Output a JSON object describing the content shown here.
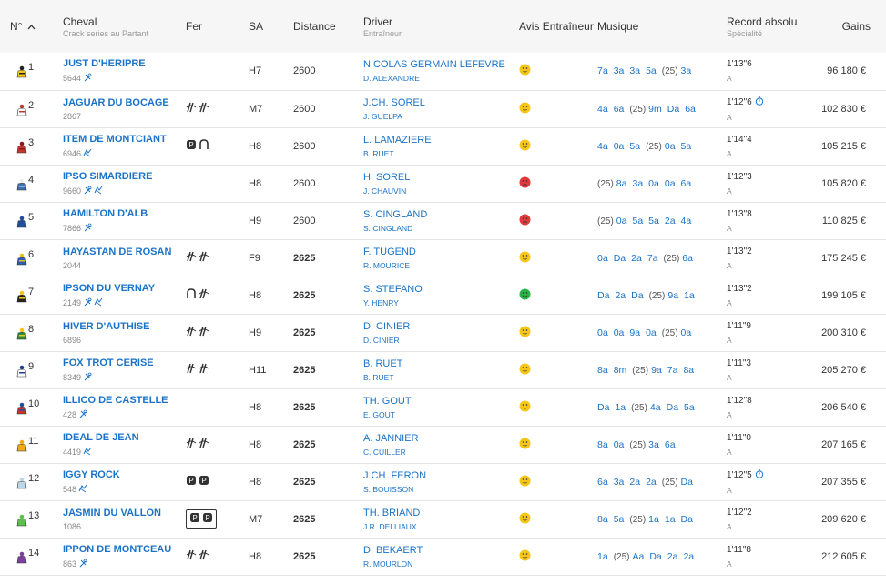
{
  "headers": {
    "num": "N°",
    "cheval": "Cheval",
    "cheval_sub": "Crack series au Partant",
    "fer": "Fer",
    "sa": "SA",
    "distance": "Distance",
    "driver": "Driver",
    "driver_sub": "Entraîneur",
    "avis": "Avis Entraîneur",
    "musique": "Musique",
    "record": "Record absolu",
    "record_sub": "Spécialité",
    "gains": "Gains"
  },
  "colors": {
    "link": "#1a73c8",
    "happy": "#f5c518",
    "sad": "#e0393e",
    "great": "#2bb34a"
  },
  "rows": [
    {
      "num": "1",
      "jersey": [
        "#f5c518",
        "#222"
      ],
      "name": "JUST D'HERIPRE",
      "gain": "5644",
      "gain_icons": [
        "horseshoe-icon"
      ],
      "fer": [],
      "sa": "H7",
      "distance": "2600",
      "bold": false,
      "driver": "NICOLAS GERMAIN LEFEVRE",
      "trainer": "D. ALEXANDRE",
      "avis": "neutral",
      "musique": [
        "7a",
        "3a",
        "3a",
        "5a",
        "(25)",
        "3a"
      ],
      "record": "1'13\"6",
      "record_icon": false,
      "spec": "A",
      "gains": "96 180 €"
    },
    {
      "num": "2",
      "jersey": [
        "#ffffff",
        "#c0392b"
      ],
      "name": "JAGUAR DU BOCAGE",
      "gain": "2867",
      "gain_icons": [],
      "fer": [
        "barefoot",
        "barefoot"
      ],
      "sa": "M7",
      "distance": "2600",
      "bold": false,
      "driver": "J.CH. SOREL",
      "trainer": "J. GUELPA",
      "avis": "neutral",
      "musique": [
        "4a",
        "6a",
        "(25)",
        "9m",
        "Da",
        "6a"
      ],
      "record": "1'12\"6",
      "record_icon": true,
      "spec": "A",
      "gains": "102 830 €"
    },
    {
      "num": "3",
      "jersey": [
        "#c0392b",
        "#8b1a1a"
      ],
      "name": "ITEM DE MONTCIANT",
      "gain": "6946",
      "gain_icons": [
        "horse-icon"
      ],
      "fer": [
        "p",
        "shoe"
      ],
      "sa": "H8",
      "distance": "2600",
      "bold": false,
      "driver": "L. LAMAZIERE",
      "trainer": "B. RUET",
      "avis": "neutral",
      "musique": [
        "4a",
        "0a",
        "5a",
        "(25)",
        "0a",
        "5a"
      ],
      "record": "1'14\"4",
      "record_icon": false,
      "spec": "A",
      "gains": "105 215 €"
    },
    {
      "num": "4",
      "jersey": [
        "#3a6fb0",
        "#eee"
      ],
      "name": "IPSO SIMARDIERE",
      "gain": "9660",
      "gain_icons": [
        "horseshoe-icon",
        "horse-icon"
      ],
      "fer": [],
      "sa": "H8",
      "distance": "2600",
      "bold": false,
      "driver": "H. SOREL",
      "trainer": "J. CHAUVIN",
      "avis": "sad",
      "musique": [
        "(25)",
        "8a",
        "3a",
        "0a",
        "0a",
        "6a"
      ],
      "record": "1'12\"3",
      "record_icon": false,
      "spec": "A",
      "gains": "105 820 €"
    },
    {
      "num": "5",
      "jersey": [
        "#1f4e9c",
        "#1f4e9c"
      ],
      "name": "HAMILTON D'ALB",
      "gain": "7866",
      "gain_icons": [
        "horseshoe-icon"
      ],
      "fer": [],
      "sa": "H9",
      "distance": "2600",
      "bold": false,
      "driver": "S. CINGLAND",
      "trainer": "S. CINGLAND",
      "avis": "sad",
      "musique": [
        "(25)",
        "0a",
        "5a",
        "5a",
        "2a",
        "4a"
      ],
      "record": "1'13\"8",
      "record_icon": false,
      "spec": "A",
      "gains": "110 825 €"
    },
    {
      "num": "6",
      "jersey": [
        "#2b5fb0",
        "#e0c21a"
      ],
      "name": "HAYASTAN DE ROSAN",
      "gain": "2044",
      "gain_icons": [],
      "fer": [
        "barefoot",
        "barefoot"
      ],
      "sa": "F9",
      "distance": "2625",
      "bold": true,
      "driver": "F. TUGEND",
      "trainer": "R. MOURICE",
      "avis": "neutral",
      "musique": [
        "0a",
        "Da",
        "2a",
        "7a",
        "(25)",
        "6a"
      ],
      "record": "1'13\"2",
      "record_icon": false,
      "spec": "A",
      "gains": "175 245 €"
    },
    {
      "num": "7",
      "jersey": [
        "#222",
        "#f5c518"
      ],
      "name": "IPSON DU VERNAY",
      "gain": "2149",
      "gain_icons": [
        "horseshoe-icon",
        "horse-icon"
      ],
      "fer": [
        "shoe",
        "barefoot"
      ],
      "sa": "H8",
      "distance": "2625",
      "bold": true,
      "driver": "S. STEFANO",
      "trainer": "Y. HENRY",
      "avis": "great",
      "musique": [
        "Da",
        "2a",
        "Da",
        "(25)",
        "9a",
        "1a"
      ],
      "record": "1'13\"2",
      "record_icon": false,
      "spec": "A",
      "gains": "199 105 €"
    },
    {
      "num": "8",
      "jersey": [
        "#2e8b3a",
        "#f5c518"
      ],
      "name": "HIVER D'AUTHISE",
      "gain": "6896",
      "gain_icons": [],
      "fer": [
        "barefoot",
        "barefoot"
      ],
      "sa": "H9",
      "distance": "2625",
      "bold": true,
      "driver": "D. CINIER",
      "trainer": "D. CINIER",
      "avis": "neutral",
      "musique": [
        "0a",
        "0a",
        "9a",
        "0a",
        "(25)",
        "0a"
      ],
      "record": "1'11\"9",
      "record_icon": false,
      "spec": "A",
      "gains": "200 310 €"
    },
    {
      "num": "9",
      "jersey": [
        "#ffffff",
        "#1f3f8c"
      ],
      "name": "FOX TROT CERISE",
      "gain": "8349",
      "gain_icons": [
        "horseshoe-icon"
      ],
      "fer": [
        "barefoot",
        "barefoot"
      ],
      "sa": "H11",
      "distance": "2625",
      "bold": true,
      "driver": "B. RUET",
      "trainer": "B. RUET",
      "avis": "neutral",
      "musique": [
        "8a",
        "8m",
        "(25)",
        "9a",
        "7a",
        "8a"
      ],
      "record": "1'11\"3",
      "record_icon": false,
      "spec": "A",
      "gains": "205 270 €"
    },
    {
      "num": "10",
      "jersey": [
        "#c0392b",
        "#1f4e9c"
      ],
      "name": "ILLICO DE CASTELLE",
      "gain": "428",
      "gain_icons": [
        "horseshoe-icon"
      ],
      "fer": [],
      "sa": "H8",
      "distance": "2625",
      "bold": true,
      "driver": "TH. GOUT",
      "trainer": "E. GOUT",
      "avis": "neutral",
      "musique": [
        "Da",
        "1a",
        "(25)",
        "4a",
        "Da",
        "5a"
      ],
      "record": "1'12\"8",
      "record_icon": false,
      "spec": "A",
      "gains": "206 540 €"
    },
    {
      "num": "11",
      "jersey": [
        "#f0a81a",
        "#f0a81a"
      ],
      "name": "IDEAL DE JEAN",
      "gain": "4419",
      "gain_icons": [
        "horse-icon"
      ],
      "fer": [
        "barefoot",
        "barefoot"
      ],
      "sa": "H8",
      "distance": "2625",
      "bold": true,
      "driver": "A. JANNIER",
      "trainer": "C. CUILLER",
      "avis": "neutral",
      "musique": [
        "8a",
        "0a",
        "(25)",
        "3a",
        "6a"
      ],
      "record": "1'11\"0",
      "record_icon": false,
      "spec": "A",
      "gains": "207 165 €"
    },
    {
      "num": "12",
      "jersey": [
        "#bcd6ea",
        "#bcd6ea"
      ],
      "name": "IGGY ROCK",
      "gain": "548",
      "gain_icons": [
        "horse-icon"
      ],
      "fer": [
        "p",
        "p"
      ],
      "sa": "H8",
      "distance": "2625",
      "bold": true,
      "driver": "J.CH. FERON",
      "trainer": "S. BOUISSON",
      "avis": "neutral",
      "musique": [
        "6a",
        "3a",
        "2a",
        "2a",
        "(25)",
        "Da"
      ],
      "record": "1'12\"5",
      "record_icon": true,
      "spec": "A",
      "gains": "207 355 €"
    },
    {
      "num": "13",
      "jersey": [
        "#5cbf4a",
        "#5cbf4a"
      ],
      "name": "JASMIN DU VALLON",
      "gain": "1086",
      "gain_icons": [],
      "fer": [
        "boxed-p",
        "boxed-p"
      ],
      "sa": "M7",
      "distance": "2625",
      "bold": true,
      "driver": "TH. BRIAND",
      "trainer": "J.R. DELLIAUX",
      "avis": "neutral",
      "musique": [
        "8a",
        "5a",
        "(25)",
        "1a",
        "1a",
        "Da"
      ],
      "record": "1'12\"2",
      "record_icon": false,
      "spec": "A",
      "gains": "209 620 €"
    },
    {
      "num": "14",
      "jersey": [
        "#7a3fa0",
        "#7a3fa0"
      ],
      "name": "IPPON DE MONTCEAU",
      "gain": "863",
      "gain_icons": [
        "horseshoe-icon"
      ],
      "fer": [
        "barefoot",
        "barefoot"
      ],
      "sa": "H8",
      "distance": "2625",
      "bold": true,
      "driver": "D. BEKAERT",
      "trainer": "R. MOURLON",
      "avis": "neutral",
      "musique": [
        "1a",
        "(25)",
        "Aa",
        "Da",
        "2a",
        "2a"
      ],
      "record": "1'11\"8",
      "record_icon": false,
      "spec": "A",
      "gains": "212 605 €"
    }
  ]
}
